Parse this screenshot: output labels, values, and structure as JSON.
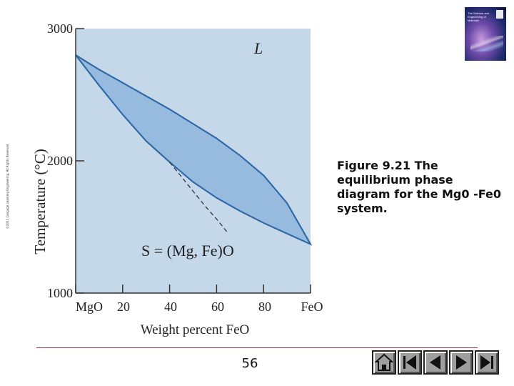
{
  "copyright": "©2011 Cengage Learning Engineering. All Rights Reserved",
  "book_cover": {
    "title": "The Science and Engineering of Materials"
  },
  "caption": "Figure 9.21 The equilibrium phase diagram for the Mg0 -Fe0 system.",
  "page_number": "56",
  "nav_buttons": [
    "home-icon",
    "first-icon",
    "prev-icon",
    "next-icon",
    "last-icon"
  ],
  "colors": {
    "plot_bg": "#c5d8ea",
    "lens_fill": "#97badf",
    "lens_stroke": "#2f6aa6",
    "rule": "#b33a3a"
  },
  "chart_data": {
    "type": "area",
    "xlabel": "Weight percent FeO",
    "ylabel": "Temperature (°C)",
    "xlim": [
      0,
      100
    ],
    "ylim": [
      1000,
      3000
    ],
    "x_ticks": [
      0,
      20,
      40,
      60,
      80,
      100
    ],
    "x_tick_labels": [
      "MgO",
      "20",
      "40",
      "60",
      "80",
      "FeO"
    ],
    "y_ticks": [
      1000,
      2000,
      3000
    ],
    "y_tick_labels": [
      "1000",
      "2000",
      "3000"
    ],
    "grid": false,
    "annotations": [
      {
        "text": "L",
        "region": "liquid"
      },
      {
        "text": "S = (Mg, Fe)O",
        "region": "solid"
      }
    ],
    "series": [
      {
        "kind": "liquidus",
        "x": [
          0,
          10,
          20,
          30,
          40,
          50,
          60,
          70,
          80,
          90,
          100
        ],
        "y": [
          2800,
          2690,
          2590,
          2490,
          2390,
          2280,
          2170,
          2040,
          1890,
          1680,
          1370
        ]
      },
      {
        "kind": "solidus",
        "x": [
          0,
          10,
          20,
          30,
          40,
          50,
          60,
          70,
          80,
          90,
          100
        ],
        "y": [
          2800,
          2570,
          2350,
          2150,
          1990,
          1840,
          1720,
          1620,
          1530,
          1450,
          1370
        ]
      },
      {
        "kind": "metastable-dashed",
        "x": [
          40,
          45,
          50,
          55,
          60,
          65
        ],
        "y": [
          1990,
          1880,
          1770,
          1660,
          1560,
          1450
        ]
      }
    ]
  }
}
